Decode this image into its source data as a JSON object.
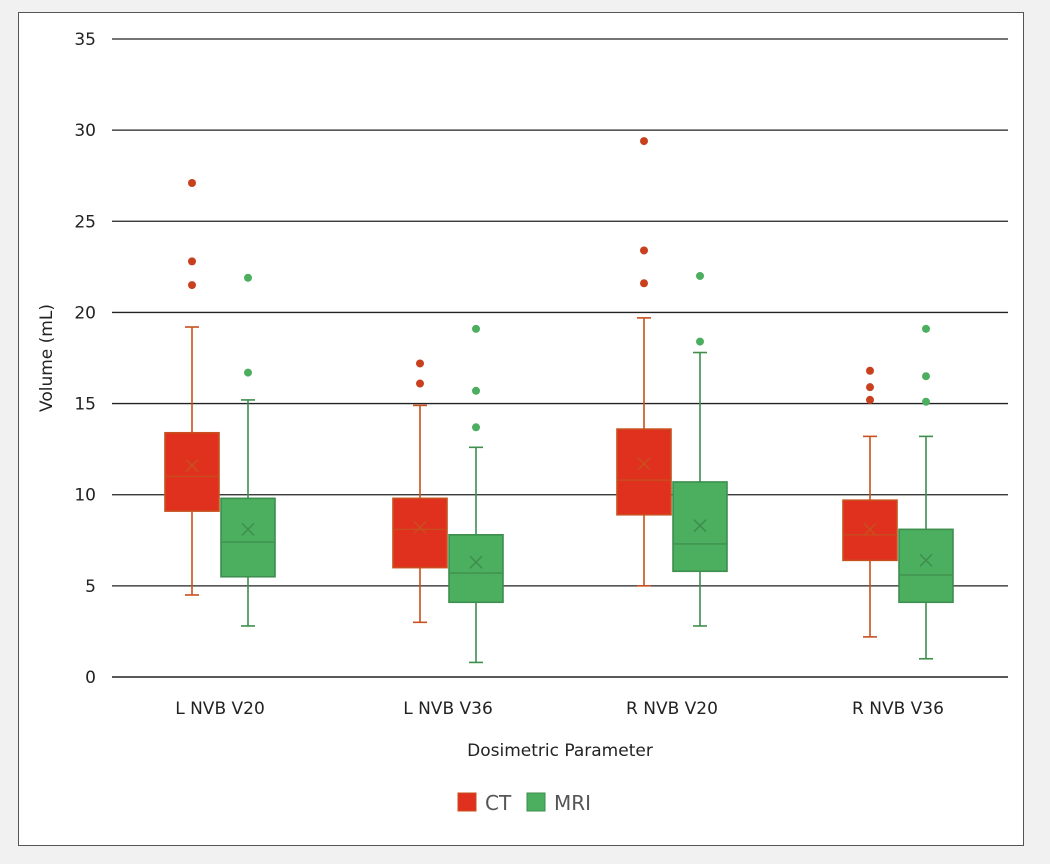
{
  "chart_data": {
    "type": "box",
    "title": "",
    "xlabel": "Dosimetric Parameter",
    "ylabel": "Volume (mL)",
    "ylim": [
      0,
      35
    ],
    "yticks": [
      0,
      5,
      10,
      15,
      20,
      25,
      30,
      35
    ],
    "grid": true,
    "legend_position": "bottom",
    "categories": [
      "L NVB V20",
      "L NVB V36",
      "R NVB V20",
      "R NVB V36"
    ],
    "series": [
      {
        "name": "CT",
        "color": "#e0301e",
        "stroke": "#c8501e",
        "boxes": [
          {
            "min": 4.5,
            "q1": 9.1,
            "median": 11.0,
            "q3": 13.4,
            "max": 19.2,
            "mean": 11.6,
            "outliers": [
              21.5,
              22.8,
              27.1
            ]
          },
          {
            "min": 3.0,
            "q1": 6.0,
            "median": 8.1,
            "q3": 9.8,
            "max": 14.9,
            "mean": 8.2,
            "outliers": [
              16.1,
              17.2
            ]
          },
          {
            "min": 5.0,
            "q1": 8.9,
            "median": 10.8,
            "q3": 13.6,
            "max": 19.7,
            "mean": 11.7,
            "outliers": [
              21.6,
              23.4,
              29.4
            ]
          },
          {
            "min": 2.2,
            "q1": 6.4,
            "median": 7.8,
            "q3": 9.7,
            "max": 13.2,
            "mean": 8.1,
            "outliers": [
              15.2,
              15.9,
              16.8
            ]
          }
        ]
      },
      {
        "name": "MRI",
        "color": "#4caf5f",
        "stroke": "#3e8e4e",
        "boxes": [
          {
            "min": 2.8,
            "q1": 5.5,
            "median": 7.4,
            "q3": 9.8,
            "max": 15.2,
            "mean": 8.1,
            "outliers": [
              16.7,
              21.9
            ]
          },
          {
            "min": 0.8,
            "q1": 4.1,
            "median": 5.7,
            "q3": 7.8,
            "max": 12.6,
            "mean": 6.3,
            "outliers": [
              13.7,
              15.7,
              19.1
            ]
          },
          {
            "min": 2.8,
            "q1": 5.8,
            "median": 7.3,
            "q3": 10.7,
            "max": 17.8,
            "mean": 8.3,
            "outliers": [
              18.4,
              22.0
            ]
          },
          {
            "min": 1.0,
            "q1": 4.1,
            "median": 5.6,
            "q3": 8.1,
            "max": 13.2,
            "mean": 6.4,
            "outliers": [
              15.1,
              16.5,
              19.1
            ]
          }
        ]
      }
    ]
  }
}
